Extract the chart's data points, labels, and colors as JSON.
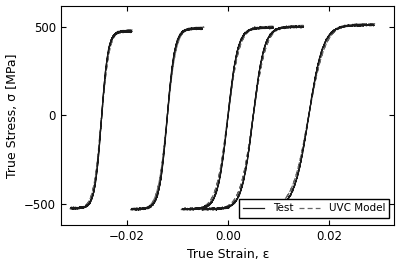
{
  "title": "",
  "xlabel": "True Strain, ε",
  "ylabel": "True Stress, σ [MPa]",
  "xlim": [
    -0.033,
    0.033
  ],
  "ylim": [
    -620,
    620
  ],
  "xticks": [
    -0.02,
    0.0,
    0.02
  ],
  "yticks": [
    -500,
    0,
    500
  ],
  "test_color": "#1a1a1a",
  "model_color": "#666666",
  "test_lw": 0.9,
  "model_lw": 0.9,
  "model_ls": "--",
  "legend_labels": [
    "Test",
    "UVC Model"
  ],
  "background_color": "#ffffff",
  "figsize": [
    4.0,
    2.67
  ],
  "dpi": 100,
  "cycles": [
    {
      "eps_min": -0.031,
      "eps_max": -0.019,
      "sig_max": 475,
      "sig_min": -525
    },
    {
      "eps_min": -0.019,
      "eps_max": -0.005,
      "sig_max": 490,
      "sig_min": -530
    },
    {
      "eps_min": -0.009,
      "eps_max": 0.009,
      "sig_max": 495,
      "sig_min": -530
    },
    {
      "eps_min": -0.005,
      "eps_max": 0.015,
      "sig_max": 500,
      "sig_min": -530
    },
    {
      "eps_min": 0.003,
      "eps_max": 0.029,
      "sig_max": 510,
      "sig_min": -530
    }
  ]
}
